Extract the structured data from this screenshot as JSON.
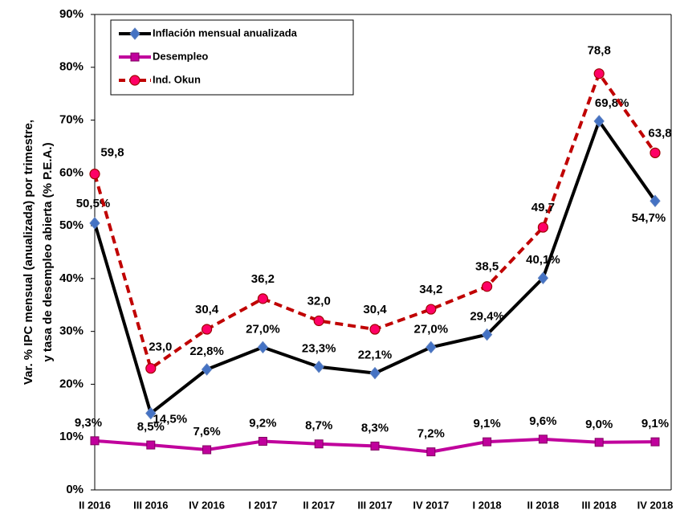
{
  "chart_data": {
    "type": "line",
    "ylabel": [
      "Var. % IPC mensual (anualizada) por trimestre,",
      "y tasa de desempleo abierta (% P.E.A.)"
    ],
    "categories": [
      "II 2016",
      "III 2016",
      "IV 2016",
      "I 2017",
      "II 2017",
      "III 2017",
      "IV 2017",
      "I 2018",
      "II 2018",
      "III 2018",
      "IV 2018"
    ],
    "series": [
      {
        "name": "Inflación mensual anualizada",
        "color": "#000000",
        "marker": "diamond",
        "marker_color": "#4472c4",
        "dash": false,
        "values": [
          50.5,
          14.5,
          22.8,
          27.0,
          23.3,
          22.1,
          27.0,
          29.4,
          40.1,
          69.8,
          54.7
        ],
        "value_labels": [
          "50,5%",
          "14,5%",
          "22,8%",
          "27,0%",
          "23,3%",
          "22,1%",
          "27,0%",
          "29,4%",
          "40,1%",
          "69,8%",
          "54,7%"
        ]
      },
      {
        "name": "Desempleo",
        "color": "#c0009c",
        "marker": "square",
        "marker_color": "#c0009c",
        "dash": false,
        "values": [
          9.3,
          8.5,
          7.6,
          9.2,
          8.7,
          8.3,
          7.2,
          9.1,
          9.6,
          9.0,
          9.1
        ],
        "value_labels": [
          "9,3%",
          "8,5%",
          "7,6%",
          "9,2%",
          "8,7%",
          "8,3%",
          "7,2%",
          "9,1%",
          "9,6%",
          "9,0%",
          "9,1%"
        ]
      },
      {
        "name": "Ind. Okun",
        "color": "#c00000",
        "marker": "circle",
        "marker_color": "#ff0066",
        "dash": true,
        "values": [
          59.8,
          23.0,
          30.4,
          36.2,
          32.0,
          30.4,
          34.2,
          38.5,
          49.7,
          78.8,
          63.8
        ],
        "value_labels": [
          "59,8",
          "23,0",
          "30,4",
          "36,2",
          "32,0",
          "30,4",
          "34,2",
          "38,5",
          "49,7",
          "78,8",
          "63,8"
        ]
      }
    ],
    "ylim": [
      0,
      90
    ],
    "yticks": [
      {
        "value": 0,
        "label": "0%"
      },
      {
        "value": 10,
        "label": "10%"
      },
      {
        "value": 20,
        "label": "20%"
      },
      {
        "value": 30,
        "label": "30%"
      },
      {
        "value": 40,
        "label": "40%"
      },
      {
        "value": 50,
        "label": "50%"
      },
      {
        "value": 60,
        "label": "60%"
      },
      {
        "value": 70,
        "label": "70%"
      },
      {
        "value": 80,
        "label": "80%"
      },
      {
        "value": 90,
        "label": "90%"
      }
    ],
    "legend": "upper left",
    "grid": false
  }
}
